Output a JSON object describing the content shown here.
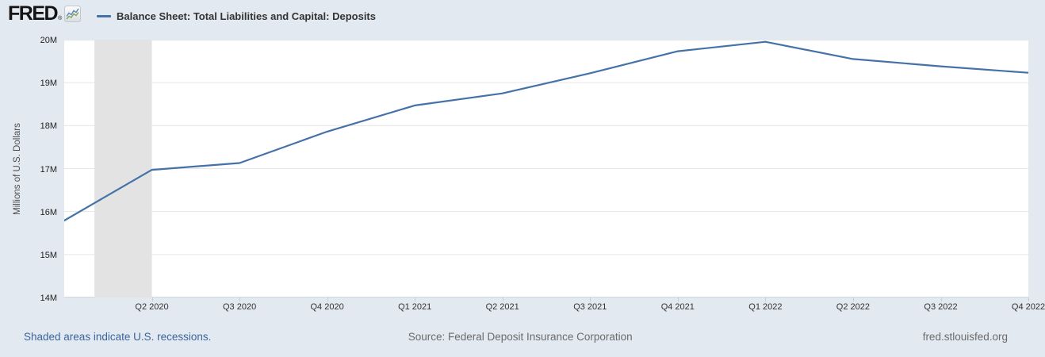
{
  "header": {
    "logo": "FRED",
    "registered_mark": "®"
  },
  "chart_data": {
    "type": "line",
    "title": "Balance Sheet: Total Liabilities and Capital: Deposits",
    "ylabel": "Millions of U.S. Dollars",
    "xlabel": "",
    "y_unit": "M",
    "ylim": [
      14,
      20
    ],
    "grid": "horizontal",
    "legend_position": "top",
    "x": [
      "Q1 2020",
      "Q2 2020",
      "Q3 2020",
      "Q4 2020",
      "Q1 2021",
      "Q2 2021",
      "Q3 2021",
      "Q4 2021",
      "Q1 2022",
      "Q2 2022",
      "Q3 2022",
      "Q4 2022"
    ],
    "values": [
      15.79,
      16.97,
      17.13,
      17.86,
      18.47,
      18.75,
      19.22,
      19.73,
      19.95,
      19.55,
      19.38,
      19.23
    ],
    "x_tick_labels": [
      "Q2 2020",
      "Q3 2020",
      "Q4 2020",
      "Q1 2021",
      "Q2 2021",
      "Q3 2021",
      "Q4 2021",
      "Q1 2022",
      "Q2 2022",
      "Q3 2022",
      "Q4 2022"
    ],
    "y_tick_labels": [
      "20M",
      "19M",
      "18M",
      "17M",
      "16M",
      "15M",
      "14M"
    ],
    "y_tick_values": [
      20,
      19,
      18,
      17,
      16,
      15,
      14
    ],
    "line_color": "#4472a8",
    "grid_color": "#e6e6e6",
    "plot_background": "#ffffff",
    "page_background": "#e3e9f1",
    "recession_shading": {
      "from_quarter_index": 0.345,
      "to_quarter_index": 1.0,
      "color": "#e3e3e3"
    }
  },
  "footer": {
    "recessions_note": "Shaded areas indicate U.S. recessions.",
    "source": "Source: Federal Deposit Insurance Corporation",
    "site": "fred.stlouisfed.org"
  }
}
